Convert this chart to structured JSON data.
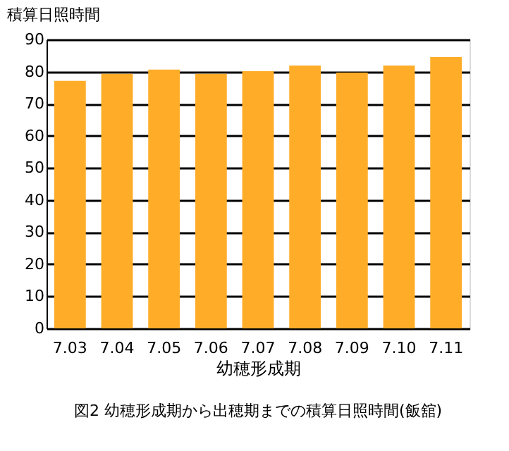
{
  "chart_data": {
    "type": "bar",
    "ylabel": "積算日照時間",
    "xlabel": "幼穂形成期",
    "categories": [
      "7.03",
      "7.04",
      "7.05",
      "7.06",
      "7.07",
      "7.08",
      "7.09",
      "7.10",
      "7.11"
    ],
    "values": [
      77.1,
      79.3,
      80.6,
      79.3,
      80.1,
      81.9,
      79.7,
      81.9,
      84.5
    ],
    "color": "#ffad29",
    "ylim": [
      0,
      90
    ],
    "yticks": [
      0,
      10,
      20,
      30,
      40,
      50,
      60,
      70,
      80,
      90
    ],
    "grid": "y",
    "annotations": [
      "図2 幼穂形成期から出穂期までの積算日照時間(飯舘)"
    ]
  }
}
